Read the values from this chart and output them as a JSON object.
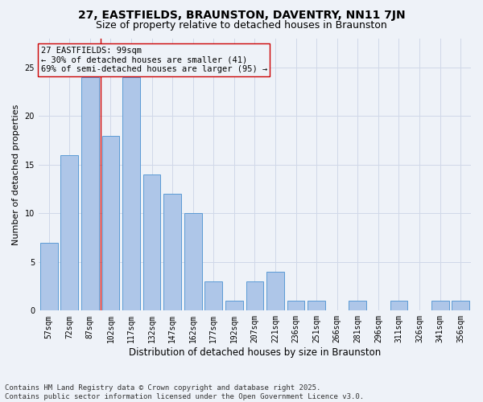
{
  "title": "27, EASTFIELDS, BRAUNSTON, DAVENTRY, NN11 7JN",
  "subtitle": "Size of property relative to detached houses in Braunston",
  "xlabel": "Distribution of detached houses by size in Braunston",
  "ylabel": "Number of detached properties",
  "categories": [
    "57sqm",
    "72sqm",
    "87sqm",
    "102sqm",
    "117sqm",
    "132sqm",
    "147sqm",
    "162sqm",
    "177sqm",
    "192sqm",
    "207sqm",
    "221sqm",
    "236sqm",
    "251sqm",
    "266sqm",
    "281sqm",
    "296sqm",
    "311sqm",
    "326sqm",
    "341sqm",
    "356sqm"
  ],
  "values": [
    7,
    16,
    24,
    18,
    24,
    14,
    12,
    10,
    3,
    1,
    3,
    4,
    1,
    1,
    0,
    1,
    0,
    1,
    0,
    1,
    1
  ],
  "bar_color": "#aec6e8",
  "bar_edgecolor": "#5b9bd5",
  "vline_x_index": 2.5,
  "vline_color": "#cc0000",
  "annotation_text": "27 EASTFIELDS: 99sqm\n← 30% of detached houses are smaller (41)\n69% of semi-detached houses are larger (95) →",
  "annotation_box_edgecolor": "#cc0000",
  "ylim": [
    0,
    28
  ],
  "yticks": [
    0,
    5,
    10,
    15,
    20,
    25
  ],
  "grid_color": "#d0d8e8",
  "background_color": "#eef2f8",
  "footer_line1": "Contains HM Land Registry data © Crown copyright and database right 2025.",
  "footer_line2": "Contains public sector information licensed under the Open Government Licence v3.0.",
  "title_fontsize": 10,
  "subtitle_fontsize": 9,
  "xlabel_fontsize": 8.5,
  "ylabel_fontsize": 8,
  "tick_fontsize": 7,
  "annotation_fontsize": 7.5,
  "footer_fontsize": 6.5
}
